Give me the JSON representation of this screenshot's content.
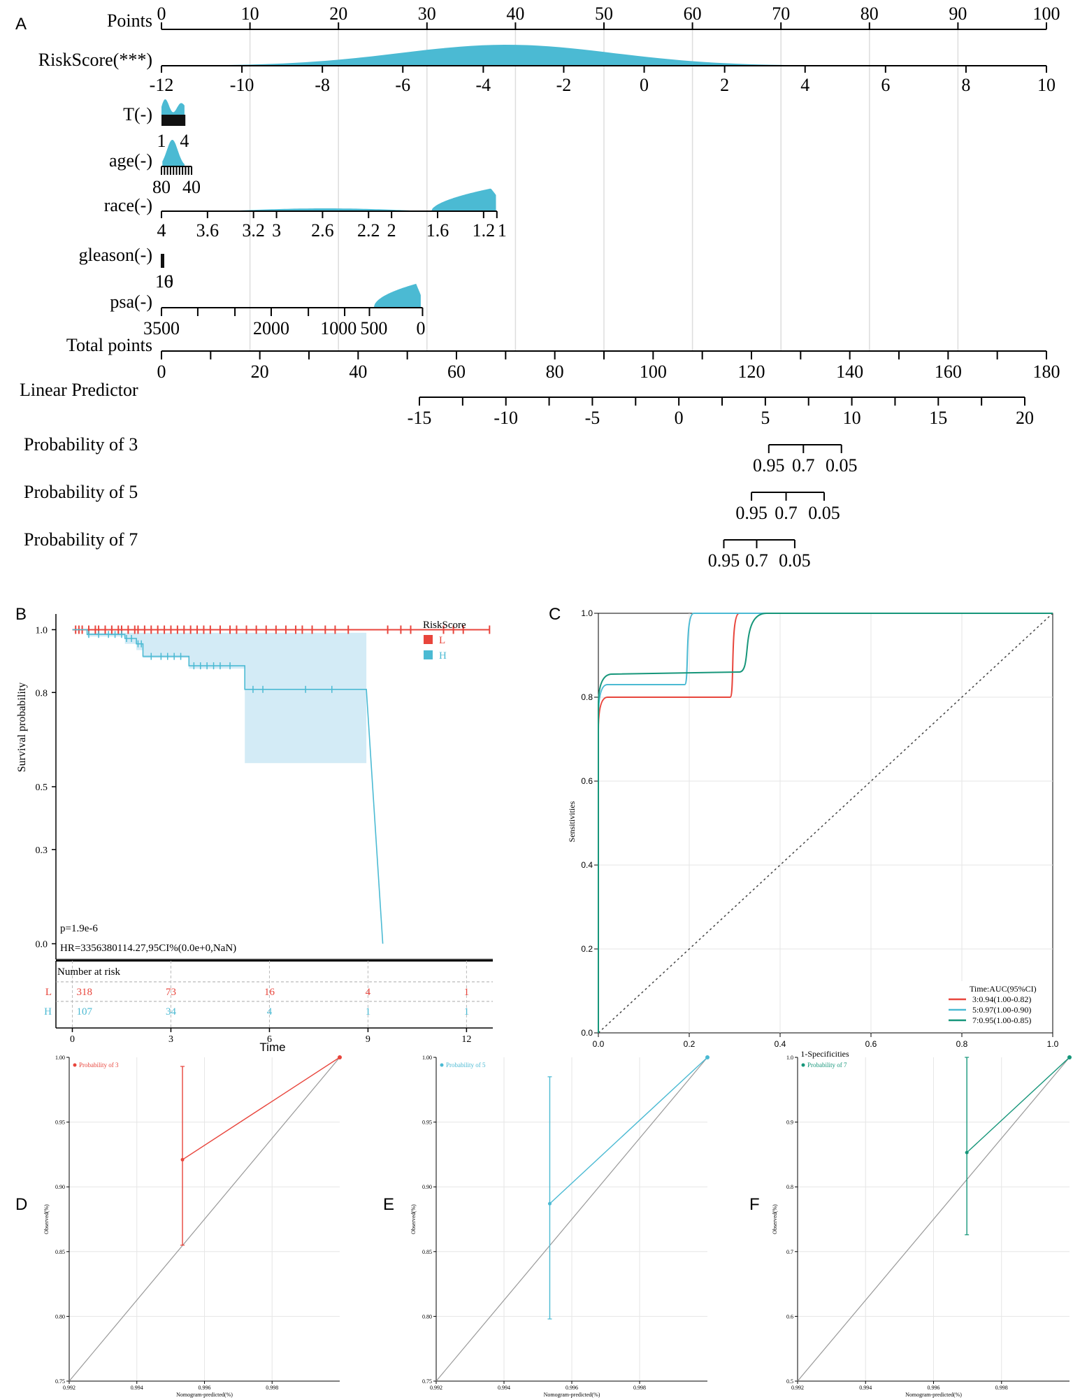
{
  "panel_labels": [
    "A",
    "B",
    "C",
    "D",
    "E",
    "F"
  ],
  "chart_data": [
    {
      "panel": "A",
      "type": "nomogram",
      "colors": {
        "density": "#4bbad3",
        "axis": "#000000",
        "grid": "#dddddd"
      },
      "rows": [
        {
          "label": "Points",
          "ticks": [
            0,
            10,
            20,
            30,
            40,
            50,
            60,
            70,
            80,
            90,
            100
          ],
          "tick_labels": [
            "0",
            "10",
            "20",
            "30",
            "40",
            "50",
            "60",
            "70",
            "80",
            "90",
            "100"
          ],
          "range": [
            0,
            100
          ]
        },
        {
          "label": "RiskScore(***)",
          "ticks": [
            -12,
            -10,
            -8,
            -6,
            -4,
            -2,
            0,
            2,
            4,
            6,
            8,
            10
          ],
          "tick_labels": [
            "-12",
            "-10",
            "-8",
            "-6",
            "-4",
            "-2",
            "0",
            "2",
            "4",
            "6",
            "8",
            "10"
          ],
          "range": [
            -12,
            10
          ],
          "points_range": [
            0,
            100
          ]
        },
        {
          "label": "T(-)",
          "tick_labels": [
            "1",
            "4"
          ],
          "points_range": [
            0,
            2.8
          ]
        },
        {
          "label": "age(-)",
          "tick_labels": [
            "80",
            "40"
          ],
          "points_range": [
            0,
            3.4
          ]
        },
        {
          "label": "race(-)",
          "tick_labels": [
            "4",
            "3.6",
            "3.2",
            "3",
            "2.6",
            "2.2",
            "2",
            "1.6",
            "1.2",
            "1"
          ],
          "points_range": [
            0,
            37.9
          ]
        },
        {
          "label": "gleason(-)",
          "tick_labels": [
            "10",
            "6"
          ],
          "points_range": [
            0,
            0.3
          ]
        },
        {
          "label": "psa(-)",
          "tick_labels": [
            "3500",
            "2000",
            "1000",
            "500",
            "0"
          ],
          "points_range": [
            0,
            29.5
          ]
        },
        {
          "label": "Total points",
          "ticks": [
            0,
            20,
            40,
            60,
            80,
            100,
            120,
            140,
            160,
            180
          ],
          "tick_labels": [
            "0",
            "20",
            "40",
            "60",
            "80",
            "100",
            "120",
            "140",
            "160",
            "180"
          ],
          "range": [
            0,
            180
          ]
        },
        {
          "label": "Linear Predictor",
          "ticks": [
            -15,
            -10,
            -5,
            0,
            5,
            10,
            15,
            20
          ],
          "tick_labels": [
            "-15",
            "-10",
            "-5",
            "0",
            "5",
            "10",
            "15",
            "20"
          ],
          "range": [
            -15,
            20
          ],
          "total_points_range": [
            52.5,
            175
          ]
        },
        {
          "label": "Probability of 3",
          "tick_labels": [
            "0.95",
            "0.7",
            "0.05"
          ],
          "linear_predictor_at": [
            5.2,
            7.2,
            9.4
          ]
        },
        {
          "label": "Probability of 5",
          "tick_labels": [
            "0.95",
            "0.7",
            "0.05"
          ],
          "linear_predictor_at": [
            4.2,
            6.2,
            8.4
          ]
        },
        {
          "label": "Probability of 7",
          "tick_labels": [
            "0.95",
            "0.7",
            "0.05"
          ],
          "linear_predictor_at": [
            2.6,
            4.5,
            6.7
          ]
        }
      ]
    },
    {
      "panel": "B",
      "type": "line",
      "subtype": "kaplan-meier",
      "xlabel": "Time",
      "ylabel": "Survival probability",
      "xticks": [
        0,
        3,
        6,
        9,
        12
      ],
      "xlim": [
        -0.5,
        12.8
      ],
      "yticks": [
        0.0,
        0.3,
        0.5,
        0.8,
        1.0
      ],
      "ytick_labels": [
        "0.0",
        "0.3",
        "0.5",
        "0.8",
        "1.0"
      ],
      "ylim": [
        -0.05,
        1.05
      ],
      "legend_title": "RiskScore",
      "series": [
        {
          "name": "L",
          "color": "#e8453c",
          "x": [
            0,
            12.7
          ],
          "y": [
            1.0,
            1.0
          ],
          "censor_x": [
            0.1,
            0.2,
            0.3,
            0.5,
            0.7,
            0.8,
            1.0,
            1.2,
            1.4,
            1.5,
            1.7,
            1.9,
            2.0,
            2.2,
            2.4,
            2.6,
            2.8,
            3.0,
            3.2,
            3.4,
            3.6,
            3.8,
            4.0,
            4.2,
            4.5,
            4.8,
            5.0,
            5.3,
            5.6,
            5.9,
            6.2,
            6.5,
            6.8,
            7.0,
            7.3,
            7.7,
            8.0,
            8.4,
            9.6,
            10.0,
            10.3,
            11.3,
            11.6,
            11.9,
            12.7
          ]
        },
        {
          "name": "H",
          "color": "#4bbad3",
          "x": [
            0,
            0.45,
            0.45,
            1.6,
            1.6,
            1.95,
            1.95,
            2.15,
            2.15,
            3.55,
            3.55,
            5.25,
            5.25,
            8.95,
            8.95,
            9.45
          ],
          "y": [
            1.0,
            1.0,
            0.985,
            0.985,
            0.972,
            0.972,
            0.955,
            0.955,
            0.915,
            0.915,
            0.885,
            0.885,
            0.81,
            0.81,
            0.81,
            0.0
          ],
          "ci_upper": [
            1.0,
            1.0,
            0.99
          ],
          "ci_lower": [
            0.985,
            0.96,
            0.93,
            0.88,
            0.81,
            0.57
          ],
          "censor_x": [
            0.5,
            0.8,
            1.1,
            1.3,
            1.5,
            1.65,
            1.8,
            2.0,
            2.1,
            2.4,
            2.7,
            2.9,
            3.1,
            3.3,
            3.7,
            3.9,
            4.1,
            4.3,
            4.5,
            4.8,
            5.5,
            5.8,
            7.1,
            7.9
          ]
        }
      ],
      "annotations": [
        "p=1.9e-6",
        "HR=3356380114.27,95CI%(0.0e+0,NaN)"
      ],
      "risk_table": {
        "title": "Number at risk",
        "time_points": [
          0,
          3,
          6,
          9,
          12
        ],
        "rows": [
          {
            "group": "L",
            "color": "#e8453c",
            "values": [
              "318",
              "73",
              "16",
              "4",
              "1"
            ]
          },
          {
            "group": "H",
            "color": "#4bbad3",
            "values": [
              "107",
              "34",
              "4",
              "1",
              "1"
            ]
          }
        ]
      }
    },
    {
      "panel": "C",
      "type": "line",
      "subtype": "time-dependent ROC",
      "xlabel": "1-Specificities",
      "ylabel": "Sensitivities",
      "xlim": [
        0,
        1
      ],
      "ylim": [
        0,
        1
      ],
      "xticks": [
        0,
        0.2,
        0.4,
        0.6,
        0.8,
        1.0
      ],
      "tick_labels": [
        "0.0",
        "0.2",
        "0.4",
        "0.6",
        "0.8",
        "1.0"
      ],
      "legend_title": "Time:AUC(95%CI)",
      "series": [
        {
          "name": "3:0.94(1.00-0.82)",
          "color": "#e8453c",
          "x": [
            0,
            0.005,
            0.02,
            0.29,
            0.3,
            0.31,
            1.0
          ],
          "y": [
            0,
            0.78,
            0.8,
            0.8,
            0.9,
            1.0,
            1.0
          ]
        },
        {
          "name": "5:0.97(1.00-0.90)",
          "color": "#4bbad3",
          "x": [
            0,
            0.005,
            0.02,
            0.19,
            0.2,
            0.21,
            1.0
          ],
          "y": [
            0,
            0.81,
            0.83,
            0.83,
            0.92,
            1.0,
            1.0
          ]
        },
        {
          "name": "7:0.95(1.00-0.85)",
          "color": "#16967a",
          "x": [
            0,
            0.005,
            0.03,
            0.31,
            0.34,
            0.37,
            1.0
          ],
          "y": [
            0,
            0.84,
            0.855,
            0.86,
            0.94,
            1.0,
            1.0
          ]
        }
      ],
      "reference_line": {
        "x": [
          0,
          1
        ],
        "y": [
          0,
          1
        ],
        "style": "dotted"
      }
    },
    {
      "panel": "D",
      "type": "line",
      "subtype": "calibration",
      "xlabel": "Nomogram-predicted(%)",
      "ylabel": "Observed(%)",
      "xlim": [
        0.992,
        1.0
      ],
      "ylim": [
        0.75,
        1.0
      ],
      "xticks": [
        0.992,
        0.994,
        0.996,
        0.998
      ],
      "xtick_labels": [
        "0.992",
        "0.994",
        "0.996",
        "0.998"
      ],
      "yticks": [
        0.75,
        0.8,
        0.85,
        0.9,
        0.95,
        1.0
      ],
      "ytick_labels": [
        "0.75",
        "0.80",
        "0.85",
        "0.90",
        "0.95",
        "1.00"
      ],
      "legend": "Probability of 3",
      "color": "#e8453c",
      "points": [
        {
          "x": 0.99535,
          "y": 0.921,
          "lower": 0.855,
          "upper": 0.993
        },
        {
          "x": 1.0,
          "y": 1.0
        }
      ]
    },
    {
      "panel": "E",
      "type": "line",
      "subtype": "calibration",
      "xlabel": "Nomogram-predicted(%)",
      "ylabel": "Observed(%)",
      "xlim": [
        0.992,
        1.0
      ],
      "ylim": [
        0.75,
        1.0
      ],
      "xticks": [
        0.992,
        0.994,
        0.996,
        0.998
      ],
      "xtick_labels": [
        "0.992",
        "0.994",
        "0.996",
        "0.998"
      ],
      "yticks": [
        0.75,
        0.8,
        0.85,
        0.9,
        0.95,
        1.0
      ],
      "ytick_labels": [
        "0.75",
        "0.80",
        "0.85",
        "0.90",
        "0.95",
        "1.00"
      ],
      "legend": "Probability of 5",
      "color": "#4bbad3",
      "points": [
        {
          "x": 0.99535,
          "y": 0.887,
          "lower": 0.798,
          "upper": 0.985
        },
        {
          "x": 1.0,
          "y": 1.0
        }
      ]
    },
    {
      "panel": "F",
      "type": "line",
      "subtype": "calibration",
      "xlabel": "Nomogram-predicted(%)",
      "ylabel": "Observed(%)",
      "xlim": [
        0.992,
        1.0
      ],
      "ylim": [
        0.5,
        1.0
      ],
      "xticks": [
        0.992,
        0.994,
        0.996,
        0.998
      ],
      "xtick_labels": [
        "0.992",
        "0.994",
        "0.996",
        "0.998"
      ],
      "yticks": [
        0.5,
        0.6,
        0.7,
        0.8,
        0.9,
        1.0
      ],
      "ytick_labels": [
        "0.5",
        "0.6",
        "0.7",
        "0.8",
        "0.9",
        "1.0"
      ],
      "legend": "Probability of 7",
      "color": "#16967a",
      "points": [
        {
          "x": 0.99698,
          "y": 0.853,
          "lower": 0.726,
          "upper": 1.0
        },
        {
          "x": 1.0,
          "y": 1.0
        }
      ]
    }
  ]
}
